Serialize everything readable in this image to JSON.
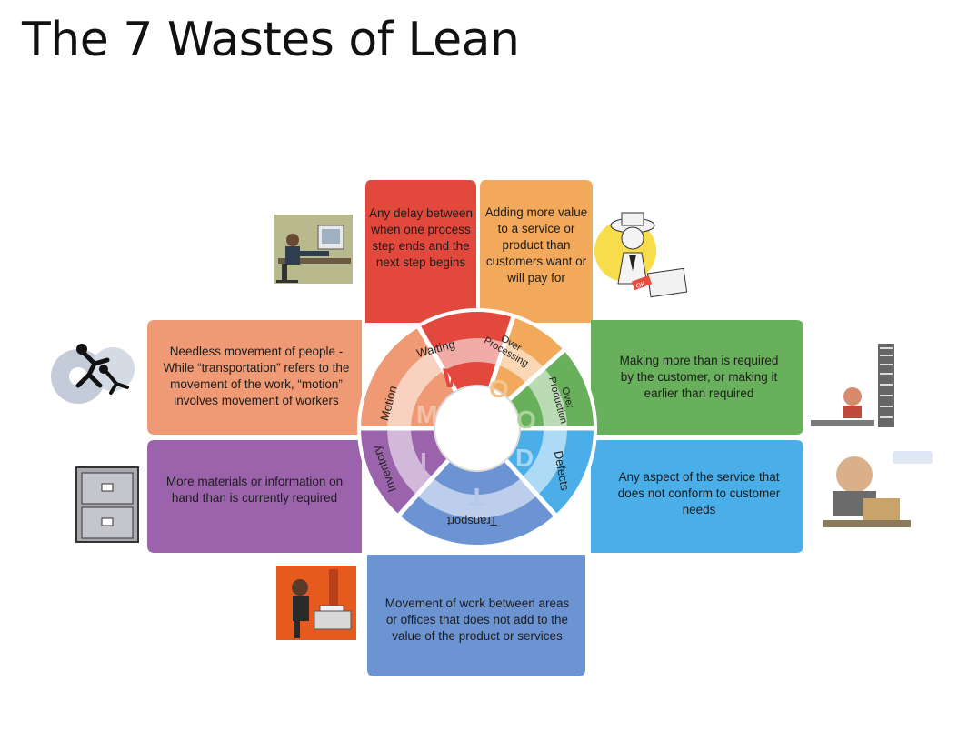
{
  "title": "The 7 Wastes of Lean",
  "colors": {
    "waiting": "#e2483c",
    "over_processing": "#f3a95b",
    "over_production": "#69b05c",
    "defects": "#4aaee8",
    "transport": "#6c93d2",
    "inventory": "#9b63ab",
    "motion": "#ef9a74"
  },
  "wastes": {
    "waiting": {
      "label": "Waiting",
      "letter": "W",
      "description": "Any delay between when one process step ends and the next step begins"
    },
    "over_processing": {
      "label_line1": "Over",
      "label_line2": "Processing",
      "letter": "O",
      "description": "Adding more value to a service or product than customers want or will pay for"
    },
    "over_production": {
      "label_line1": "Over",
      "label_line2": "Production",
      "letter": "O",
      "description": "Making more than is required by the customer, or making it earlier than required"
    },
    "defects": {
      "label": "Defects",
      "letter": "D",
      "description": "Any aspect of the service that does not conform to customer needs"
    },
    "transport": {
      "label": "Transport",
      "letter": "T",
      "description": "Movement of work between areas or offices that does not add to the value of the product or services"
    },
    "inventory": {
      "label": "Inventory",
      "letter": "I",
      "description": "More materials or information on hand than is currently required"
    },
    "motion": {
      "label": "Motion",
      "letter": "M",
      "description": "Needless movement of people - While “transportation” refers to the movement of the work, “motion” involves movement of workers"
    }
  },
  "icons": {
    "waiting": "person-feet-on-desk-icon",
    "over_processing": "inspector-ok-stamp-icon",
    "over_production": "person-behind-stacked-papers-icon",
    "defects": "frustrated-worker-icon",
    "transport": "person-at-copier-icon",
    "inventory": "filing-cabinet-icon",
    "motion": "person-running-in-gears-icon"
  },
  "mockup_text": {
    "ok": "OK"
  }
}
